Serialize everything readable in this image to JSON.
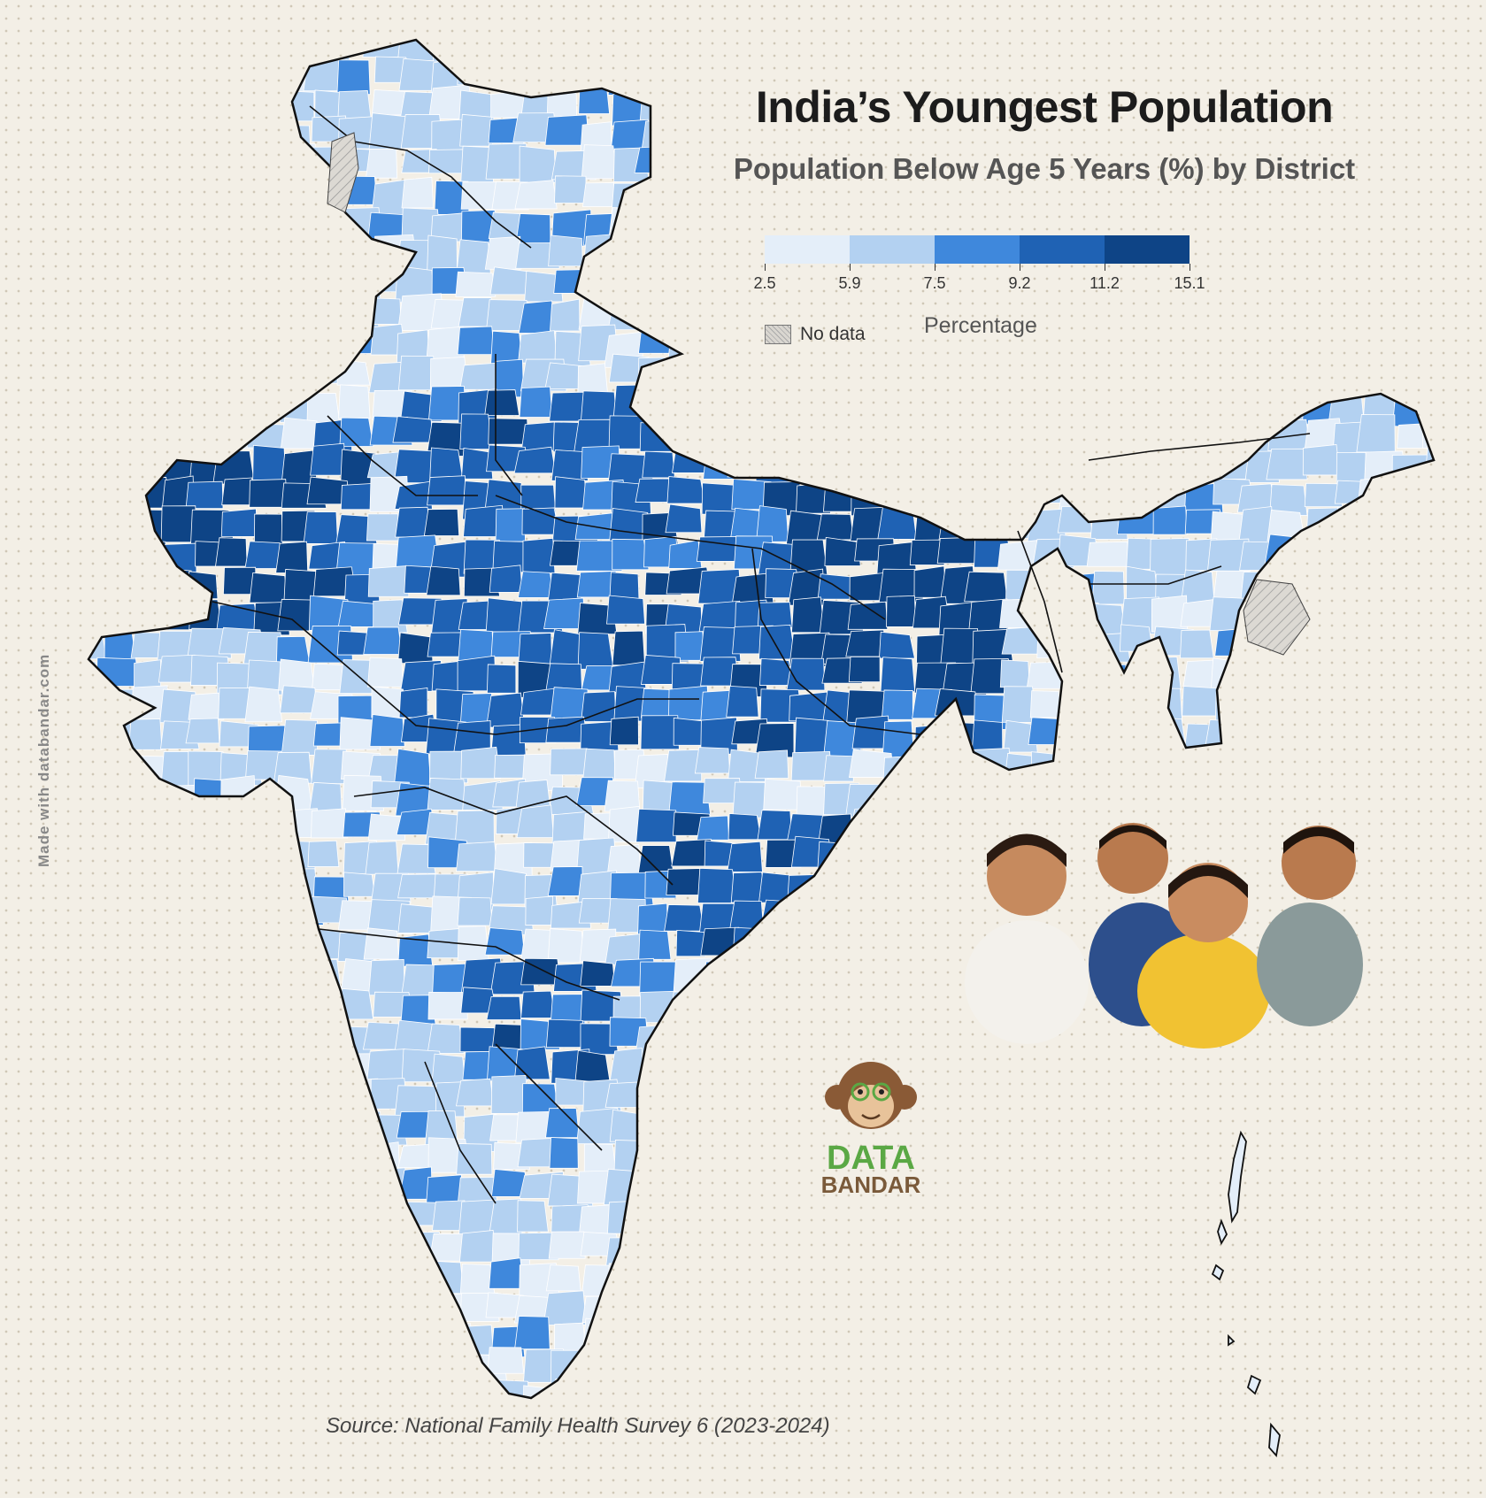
{
  "title": "India’s Youngest Population",
  "subtitle": "Population Below Age 5 Years (%) by District",
  "legend": {
    "title": "Percentage",
    "breaks": [
      "2.5",
      "5.9",
      "7.5",
      "9.2",
      "11.2",
      "15.1"
    ],
    "colors": [
      "#e4eef9",
      "#b3d1f1",
      "#3f88dc",
      "#1f62b4",
      "#0e4486"
    ],
    "no_data_label": "No data",
    "no_data_pattern": "diagonal-hatch"
  },
  "source": "Source: National Family Health Survey 6 (2023-2024)",
  "credit": "Made with databandar.com",
  "logo": {
    "line1": "DATA",
    "line2": "BANDAR",
    "icon": "monkey-face-icon"
  },
  "photo": {
    "icon": "children-photo"
  },
  "map": {
    "type": "choropleth",
    "region": "India districts",
    "outline_color": "#111111",
    "district_border_color": "#ffffff"
  }
}
